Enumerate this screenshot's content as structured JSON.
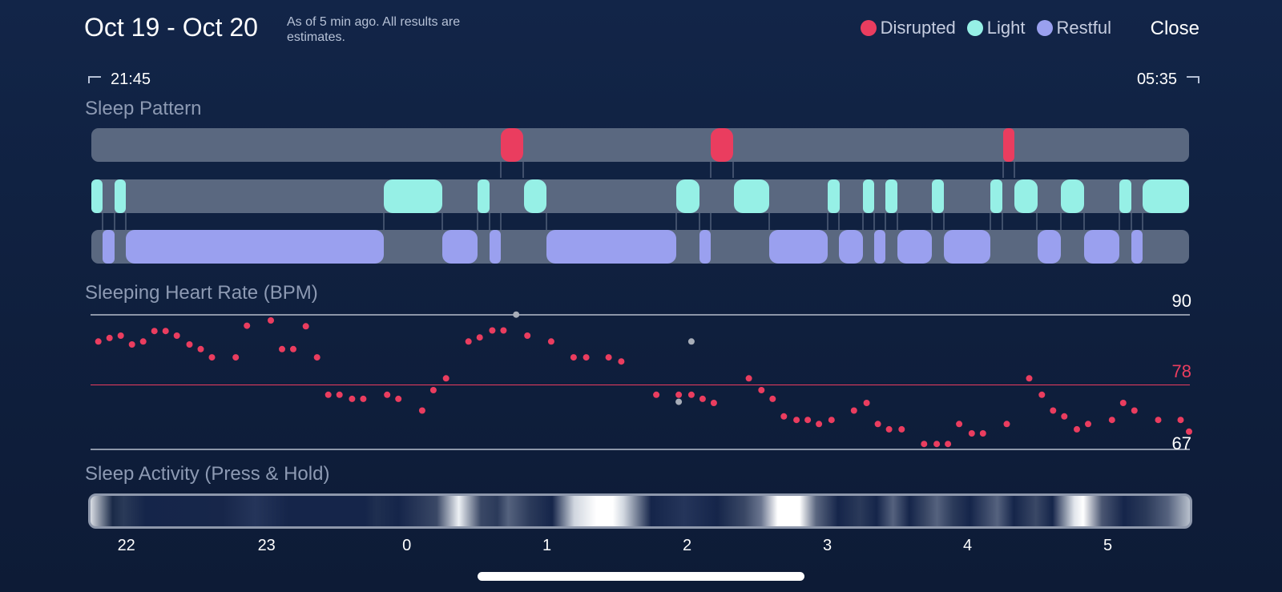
{
  "header": {
    "title": "Oct 19 - Oct 20",
    "subtitle": "As of 5 min ago. All results are estimates.",
    "close_label": "Close"
  },
  "legend": [
    {
      "label": "Disrupted",
      "color": "#ea3d5f"
    },
    {
      "label": "Light",
      "color": "#96f0e6"
    },
    {
      "label": "Restful",
      "color": "#9aa0ef"
    }
  ],
  "time_range": {
    "start": "21:45",
    "end": "05:35"
  },
  "sections": {
    "sleep_pattern": "Sleep Pattern",
    "heart_rate": "Sleeping Heart Rate (BPM)",
    "activity": "Sleep Activity (Press & Hold)"
  },
  "heart_rate": {
    "max": "90",
    "avg": "78",
    "min": "67",
    "max_color": "#ffffff",
    "avg_color": "#ea3d5f",
    "line_color": "#8d96a8"
  },
  "x_axis_ticks": [
    "22",
    "23",
    "0",
    "1",
    "2",
    "3",
    "4",
    "5"
  ],
  "chart_data": {
    "type": "scatter",
    "title": "Sleeping Heart Rate (BPM)",
    "ylabel": "BPM",
    "ylim": [
      67,
      90
    ],
    "x_unit": "hour of night (21.75 = 21:45, 29.58 = 05:35)",
    "xlim": [
      21.75,
      29.58
    ],
    "reference_lines": {
      "max": 90,
      "avg": 78,
      "min": 67
    },
    "series": [
      {
        "color": "#ea3d5f",
        "points": [
          [
            21.8,
            85.3
          ],
          [
            21.88,
            85.9
          ],
          [
            21.96,
            86.3
          ],
          [
            22.04,
            84.8
          ],
          [
            22.12,
            85.3
          ],
          [
            22.2,
            87.1
          ],
          [
            22.28,
            87.1
          ],
          [
            22.36,
            86.3
          ],
          [
            22.45,
            84.8
          ],
          [
            22.53,
            84.0
          ],
          [
            22.61,
            82.6
          ],
          [
            22.78,
            82.6
          ],
          [
            22.86,
            88.0
          ],
          [
            23.03,
            88.9
          ],
          [
            23.11,
            84.0
          ],
          [
            23.19,
            84.0
          ],
          [
            23.28,
            87.9
          ],
          [
            23.36,
            82.6
          ],
          [
            23.44,
            76.2
          ],
          [
            23.52,
            76.2
          ],
          [
            23.61,
            75.5
          ],
          [
            23.69,
            75.5
          ],
          [
            23.86,
            76.2
          ],
          [
            23.94,
            75.5
          ],
          [
            24.11,
            73.5
          ],
          [
            24.19,
            77.0
          ],
          [
            24.28,
            79.0
          ],
          [
            24.44,
            85.3
          ],
          [
            24.52,
            86.0
          ],
          [
            24.61,
            87.2
          ],
          [
            24.69,
            87.2
          ],
          [
            24.86,
            86.3
          ],
          [
            25.03,
            85.3
          ],
          [
            25.19,
            82.6
          ],
          [
            25.28,
            82.6
          ],
          [
            25.44,
            82.6
          ],
          [
            25.53,
            81.9
          ],
          [
            25.78,
            76.2
          ],
          [
            25.94,
            76.2
          ],
          [
            26.03,
            76.2
          ],
          [
            26.11,
            75.5
          ],
          [
            26.19,
            74.8
          ],
          [
            26.44,
            79.0
          ],
          [
            26.53,
            77.0
          ],
          [
            26.61,
            75.5
          ],
          [
            26.69,
            72.5
          ],
          [
            26.78,
            71.9
          ],
          [
            26.86,
            71.9
          ],
          [
            26.94,
            71.2
          ],
          [
            27.03,
            71.9
          ],
          [
            27.19,
            73.5
          ],
          [
            27.28,
            74.8
          ],
          [
            27.36,
            71.2
          ],
          [
            27.44,
            70.3
          ],
          [
            27.53,
            70.3
          ],
          [
            27.69,
            67.8
          ],
          [
            27.78,
            67.8
          ],
          [
            27.86,
            67.8
          ],
          [
            27.94,
            71.2
          ],
          [
            28.03,
            69.6
          ],
          [
            28.11,
            69.6
          ],
          [
            28.28,
            71.2
          ],
          [
            28.44,
            79.0
          ],
          [
            28.53,
            76.2
          ],
          [
            28.61,
            73.5
          ],
          [
            28.69,
            72.5
          ],
          [
            28.78,
            70.3
          ],
          [
            28.86,
            71.2
          ],
          [
            29.03,
            71.9
          ],
          [
            29.11,
            74.8
          ],
          [
            29.19,
            73.5
          ],
          [
            29.36,
            71.9
          ],
          [
            29.52,
            71.9
          ],
          [
            29.58,
            69.9
          ]
        ]
      },
      {
        "color": "#a7adb8",
        "points": [
          [
            24.78,
            89.9
          ],
          [
            25.94,
            75.0
          ],
          [
            26.03,
            85.3
          ]
        ]
      }
    ]
  }
}
